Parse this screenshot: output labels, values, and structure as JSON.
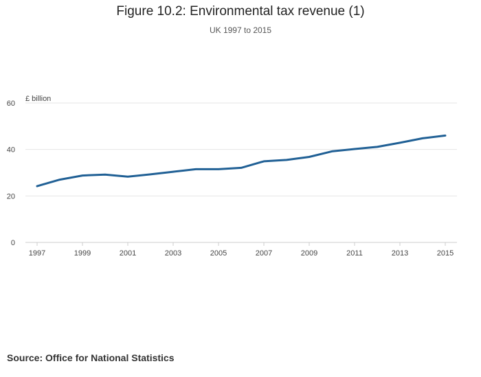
{
  "chart_data": {
    "type": "line",
    "title": "Figure 10.2: Environmental tax revenue (1)",
    "subtitle": "UK 1997 to 2015",
    "ylabel": "£ billion",
    "xlabel": "",
    "x": [
      1997,
      1998,
      1999,
      2000,
      2001,
      2002,
      2003,
      2004,
      2005,
      2006,
      2007,
      2008,
      2009,
      2010,
      2011,
      2012,
      2013,
      2014,
      2015
    ],
    "series": [
      {
        "values": [
          24.2,
          27.0,
          28.8,
          29.2,
          28.3,
          29.3,
          30.4,
          31.5,
          31.5,
          32.1,
          34.9,
          35.5,
          36.8,
          39.2,
          40.2,
          41.1,
          42.9,
          44.8,
          46.0
        ]
      }
    ],
    "xticks": [
      "1997",
      "1999",
      "2001",
      "2003",
      "2005",
      "2007",
      "2009",
      "2011",
      "2013",
      "2015"
    ],
    "yticks": [
      "0",
      "20",
      "40",
      "60"
    ],
    "ylim": [
      0,
      60
    ],
    "grid": true,
    "line_color": "#206095"
  },
  "source": "Source: Office for National Statistics"
}
